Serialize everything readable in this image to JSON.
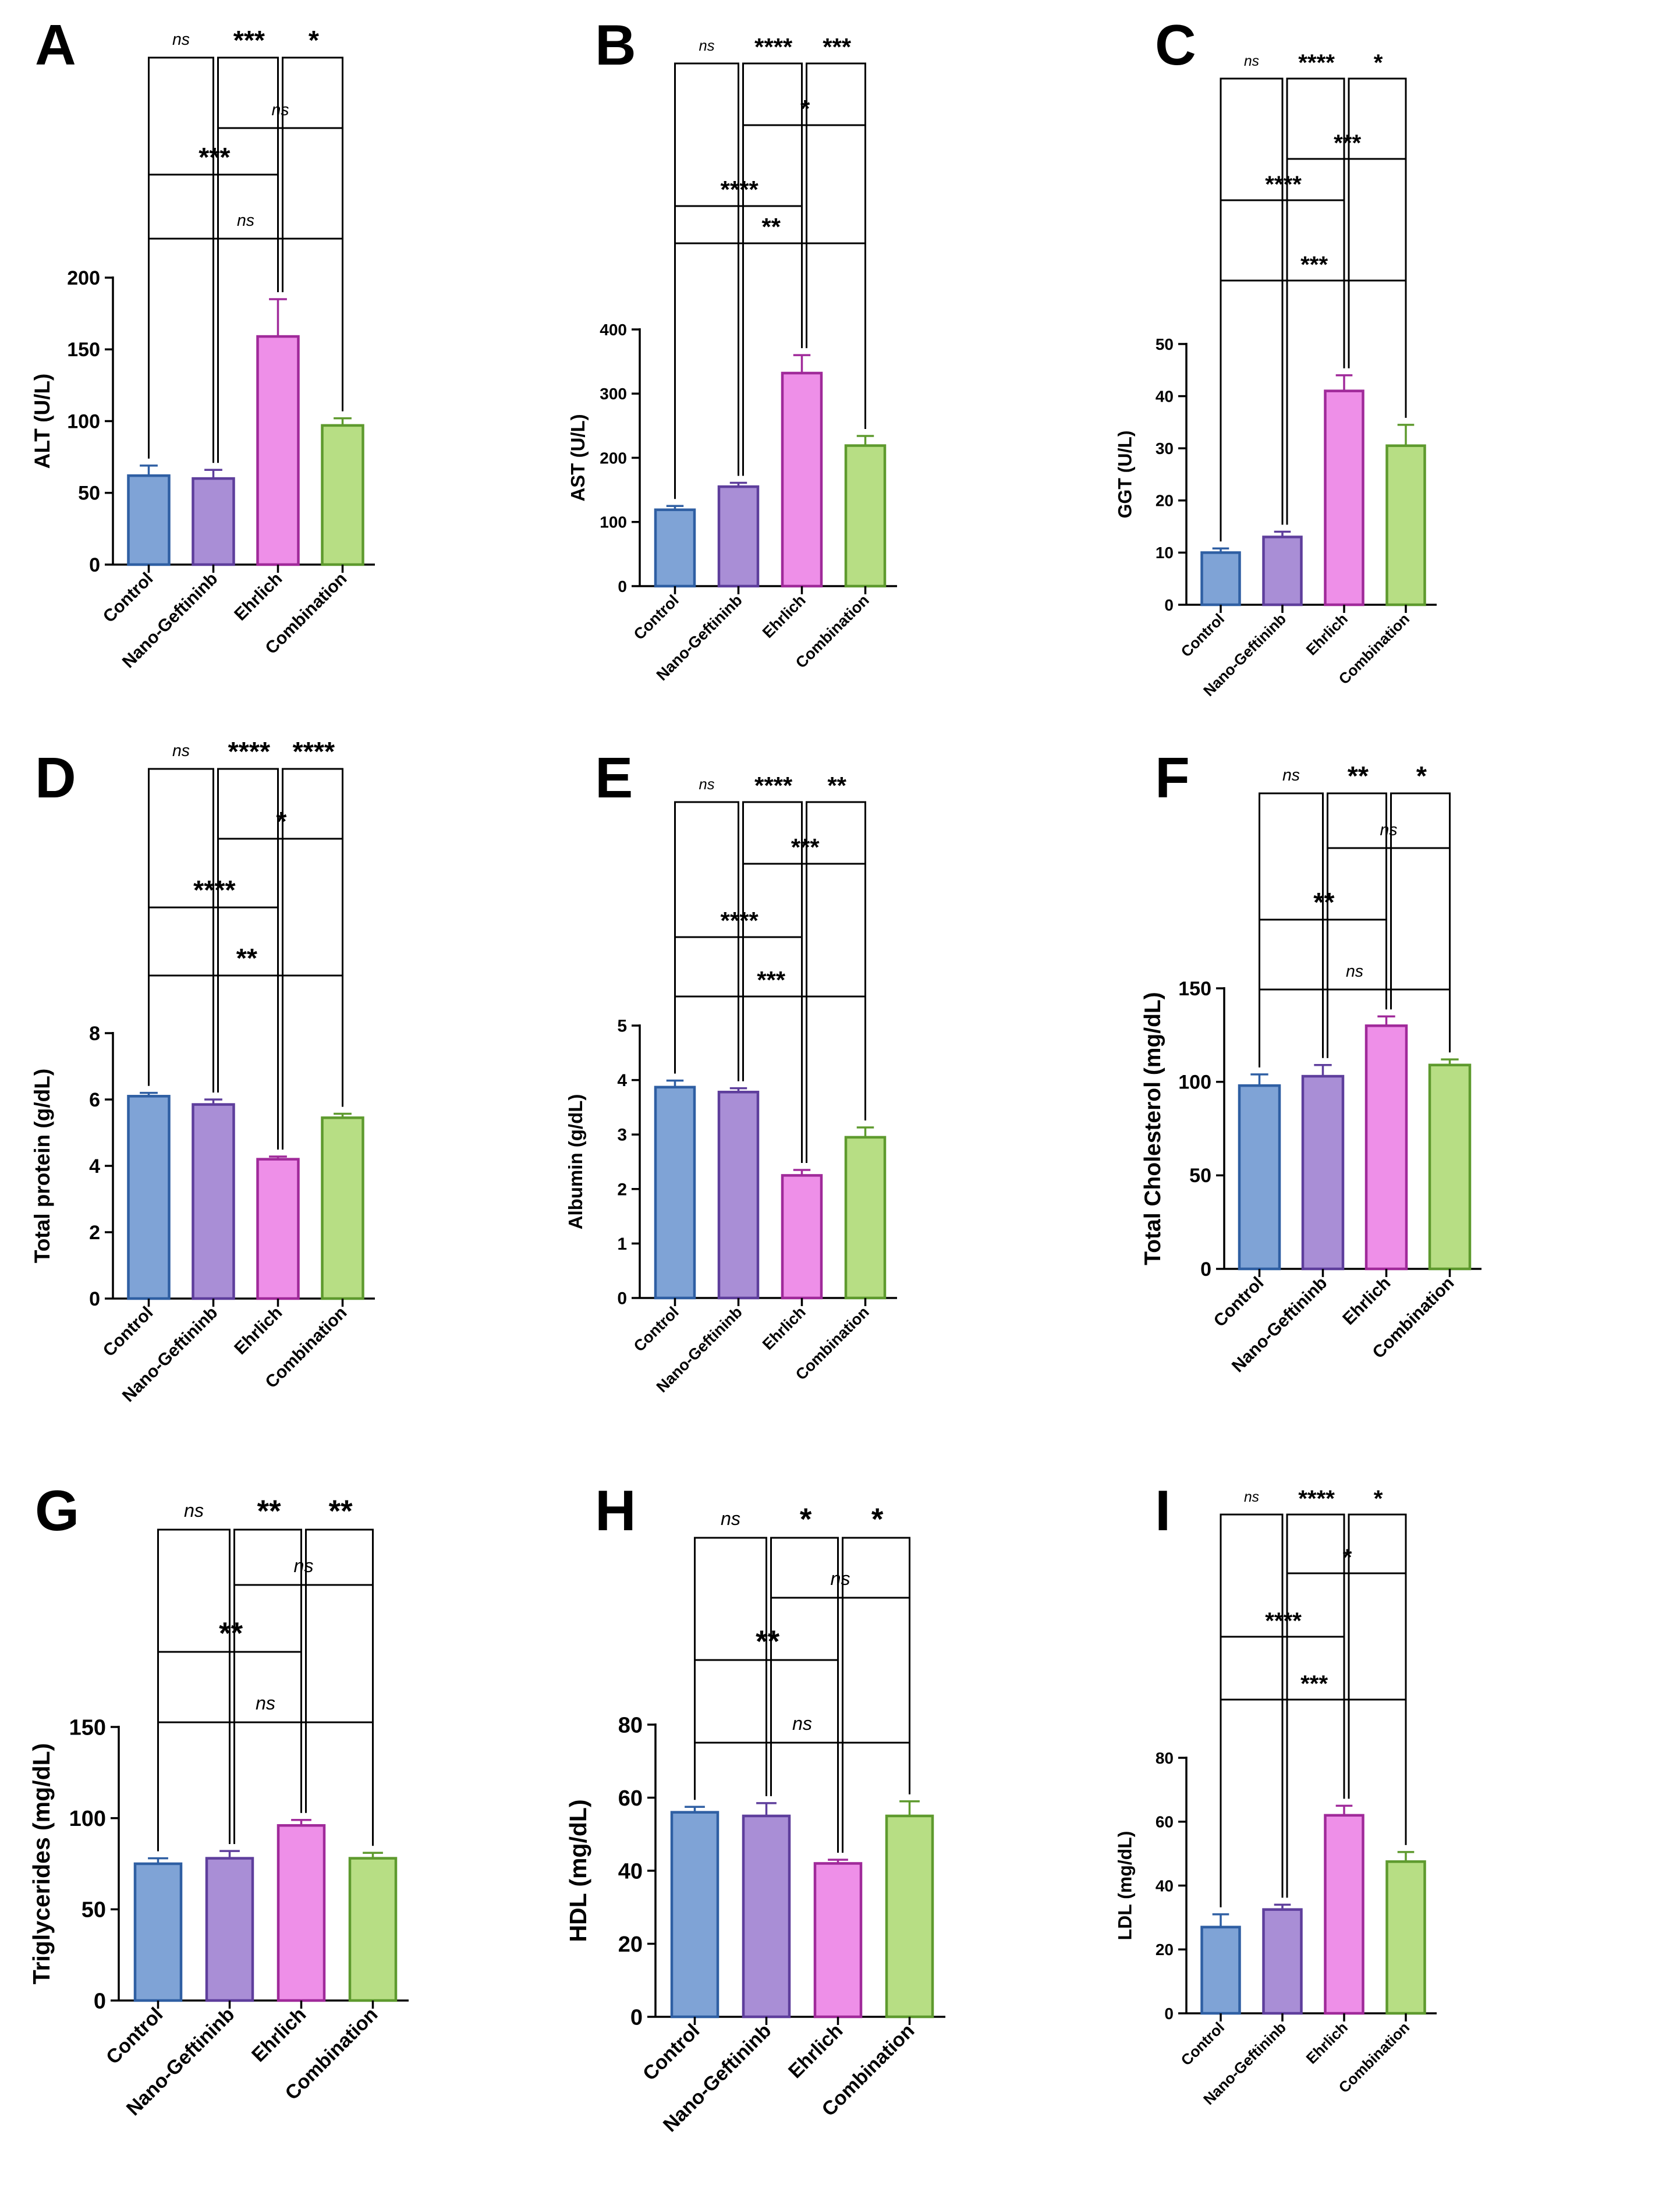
{
  "colors": {
    "control": {
      "fill": "#7FA3D6",
      "stroke": "#2F5FA3"
    },
    "nano": {
      "fill": "#A98ED6",
      "stroke": "#5E3E9C"
    },
    "ehrlich": {
      "fill": "#EE8FE8",
      "stroke": "#A02A9A"
    },
    "combination": {
      "fill": "#B7DE84",
      "stroke": "#5E9A2E"
    }
  },
  "chart_data": [
    {
      "type": "bar",
      "panel": "A",
      "ylabel": "ALT (U/L)",
      "categories": [
        "Control",
        "Nano-Geftininb",
        "Ehrlich",
        "Combination"
      ],
      "values": [
        62,
        60,
        159,
        97
      ],
      "errors": [
        7,
        6,
        26,
        5
      ],
      "ylim": [
        0,
        200
      ],
      "yticks": [
        "0",
        "50",
        "100",
        "150",
        "200"
      ],
      "comparisons": [
        {
          "a": 0,
          "b": 3,
          "label": "ns"
        },
        {
          "a": 1,
          "b": 3,
          "label": "ns"
        },
        {
          "a": 0,
          "b": 2,
          "label": "***"
        },
        {
          "a": 0,
          "b": 1,
          "label": "ns"
        },
        {
          "a": 1,
          "b": 2,
          "label": "***"
        },
        {
          "a": 2,
          "b": 3,
          "label": "*"
        }
      ]
    },
    {
      "type": "bar",
      "panel": "B",
      "ylabel": "AST (U/L)",
      "categories": [
        "Control",
        "Nano-Geftininb",
        "Ehrlich",
        "Combination"
      ],
      "values": [
        119,
        155,
        332,
        219
      ],
      "errors": [
        6,
        6,
        28,
        15
      ],
      "ylim": [
        0,
        400
      ],
      "yticks": [
        "0",
        "100",
        "200",
        "300",
        "400"
      ],
      "comparisons": [
        {
          "a": 0,
          "b": 3,
          "label": "**"
        },
        {
          "a": 1,
          "b": 3,
          "label": "*"
        },
        {
          "a": 0,
          "b": 2,
          "label": "****"
        },
        {
          "a": 1,
          "b": 2,
          "label": "****"
        },
        {
          "a": 0,
          "b": 1,
          "label": "ns"
        },
        {
          "a": 2,
          "b": 3,
          "label": "***"
        }
      ]
    },
    {
      "type": "bar",
      "panel": "C",
      "ylabel": "GGT (U/L)",
      "categories": [
        "Control",
        "Nano-Geftininb",
        "Ehrlich",
        "Combination"
      ],
      "values": [
        10,
        13,
        41,
        30.5
      ],
      "errors": [
        0.8,
        1,
        3,
        4
      ],
      "ylim": [
        0,
        50
      ],
      "yticks": [
        "0",
        "10",
        "20",
        "30",
        "40",
        "50"
      ],
      "comparisons": [
        {
          "a": 0,
          "b": 3,
          "label": "***"
        },
        {
          "a": 1,
          "b": 3,
          "label": "***"
        },
        {
          "a": 0,
          "b": 2,
          "label": "****"
        },
        {
          "a": 1,
          "b": 2,
          "label": "****"
        },
        {
          "a": 0,
          "b": 1,
          "label": "ns"
        },
        {
          "a": 2,
          "b": 3,
          "label": "*"
        }
      ]
    },
    {
      "type": "bar",
      "panel": "D",
      "ylabel": "Total protein (g/dL)",
      "categories": [
        "Control",
        "Nano-Geftininb",
        "Ehrlich",
        "Combination"
      ],
      "values": [
        6.1,
        5.85,
        4.2,
        5.45
      ],
      "errors": [
        0.1,
        0.15,
        0.08,
        0.12
      ],
      "ylim": [
        0,
        8
      ],
      "yticks": [
        "0",
        "2",
        "4",
        "6",
        "8"
      ],
      "comparisons": [
        {
          "a": 0,
          "b": 3,
          "label": "**"
        },
        {
          "a": 1,
          "b": 3,
          "label": "*"
        },
        {
          "a": 0,
          "b": 2,
          "label": "****"
        },
        {
          "a": 1,
          "b": 2,
          "label": "****"
        },
        {
          "a": 0,
          "b": 1,
          "label": "ns"
        },
        {
          "a": 2,
          "b": 3,
          "label": "****"
        }
      ]
    },
    {
      "type": "bar",
      "panel": "E",
      "ylabel": "Albumin (g/dL)",
      "categories": [
        "Control",
        "Nano-Geftininb",
        "Ehrlich",
        "Combination"
      ],
      "values": [
        3.87,
        3.78,
        2.25,
        2.95
      ],
      "errors": [
        0.12,
        0.07,
        0.1,
        0.18
      ],
      "ylim": [
        0,
        5
      ],
      "yticks": [
        "0",
        "1",
        "2",
        "3",
        "4",
        "5"
      ],
      "comparisons": [
        {
          "a": 0,
          "b": 3,
          "label": "***"
        },
        {
          "a": 1,
          "b": 3,
          "label": "***"
        },
        {
          "a": 0,
          "b": 2,
          "label": "****"
        },
        {
          "a": 1,
          "b": 2,
          "label": "****"
        },
        {
          "a": 0,
          "b": 1,
          "label": "ns"
        },
        {
          "a": 2,
          "b": 3,
          "label": "**"
        }
      ]
    },
    {
      "type": "bar",
      "panel": "F",
      "ylabel": "Total Cholesterol (mg/dL)",
      "categories": [
        "Control",
        "Nano-Geftininb",
        "Ehrlich",
        "Combination"
      ],
      "values": [
        98,
        103,
        130,
        109
      ],
      "errors": [
        6,
        6,
        5,
        3
      ],
      "ylim": [
        0,
        150
      ],
      "yticks": [
        "0",
        "50",
        "100",
        "150"
      ],
      "comparisons": [
        {
          "a": 0,
          "b": 3,
          "label": "ns"
        },
        {
          "a": 1,
          "b": 3,
          "label": "ns"
        },
        {
          "a": 0,
          "b": 2,
          "label": "**"
        },
        {
          "a": 0,
          "b": 1,
          "label": "ns"
        },
        {
          "a": 1,
          "b": 2,
          "label": "**"
        },
        {
          "a": 2,
          "b": 3,
          "label": "*"
        }
      ]
    },
    {
      "type": "bar",
      "panel": "G",
      "ylabel": "Triglycerides (mg/dL)",
      "categories": [
        "Control",
        "Nano-Geftininb",
        "Ehrlich",
        "Combination"
      ],
      "values": [
        75,
        78,
        96,
        78
      ],
      "errors": [
        3,
        4,
        3,
        3
      ],
      "ylim": [
        0,
        150
      ],
      "yticks": [
        "0",
        "50",
        "100",
        "150"
      ],
      "comparisons": [
        {
          "a": 0,
          "b": 3,
          "label": "ns"
        },
        {
          "a": 1,
          "b": 3,
          "label": "ns"
        },
        {
          "a": 0,
          "b": 2,
          "label": "**"
        },
        {
          "a": 0,
          "b": 1,
          "label": "ns"
        },
        {
          "a": 1,
          "b": 2,
          "label": "**"
        },
        {
          "a": 2,
          "b": 3,
          "label": "**"
        }
      ]
    },
    {
      "type": "bar",
      "panel": "H",
      "ylabel": "HDL (mg/dL)",
      "categories": [
        "Control",
        "Nano-Geftininb",
        "Ehrlich",
        "Combination"
      ],
      "values": [
        56,
        55,
        42,
        55
      ],
      "errors": [
        1.5,
        3.5,
        1,
        4
      ],
      "ylim": [
        0,
        80
      ],
      "yticks": [
        "0",
        "20",
        "40",
        "60",
        "80"
      ],
      "comparisons": [
        {
          "a": 0,
          "b": 3,
          "label": "ns"
        },
        {
          "a": 1,
          "b": 3,
          "label": "ns"
        },
        {
          "a": 0,
          "b": 2,
          "label": "**"
        },
        {
          "a": 0,
          "b": 1,
          "label": "ns"
        },
        {
          "a": 1,
          "b": 2,
          "label": "*"
        },
        {
          "a": 2,
          "b": 3,
          "label": "*"
        }
      ]
    },
    {
      "type": "bar",
      "panel": "I",
      "ylabel": "LDL (mg/dL)",
      "categories": [
        "Control",
        "Nano-Geftininb",
        "Ehrlich",
        "Combination"
      ],
      "values": [
        27,
        32.5,
        62,
        47.5
      ],
      "errors": [
        4,
        1.5,
        3,
        3
      ],
      "ylim": [
        0,
        80
      ],
      "yticks": [
        "0",
        "20",
        "40",
        "60",
        "80"
      ],
      "comparisons": [
        {
          "a": 0,
          "b": 3,
          "label": "***"
        },
        {
          "a": 1,
          "b": 3,
          "label": "*"
        },
        {
          "a": 0,
          "b": 2,
          "label": "****"
        },
        {
          "a": 1,
          "b": 2,
          "label": "****"
        },
        {
          "a": 0,
          "b": 1,
          "label": "ns"
        },
        {
          "a": 2,
          "b": 3,
          "label": "*"
        }
      ]
    }
  ]
}
